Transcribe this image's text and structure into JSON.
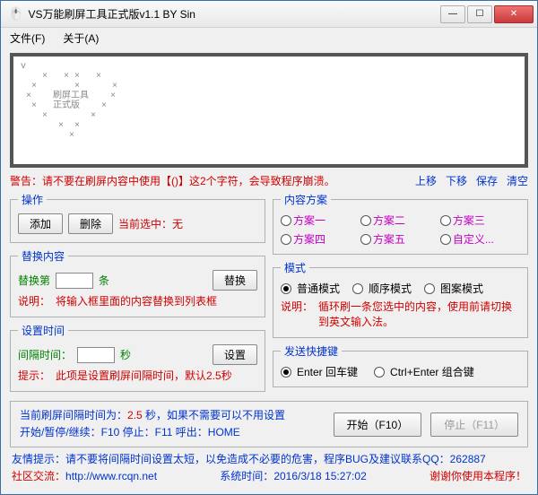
{
  "window": {
    "title": "VS万能刷屏工具正式版v1.1     BY Sin",
    "min_symbol": "—",
    "max_symbol": "☐",
    "close_symbol": "✕"
  },
  "menu": {
    "file": "文件(F)",
    "about": "关于(A)"
  },
  "ascii": "v\n    ×   × ×   ×\n  ×       ×      ×\n ×    刷屏工具    ×\n  ×   正式版    ×\n    ×        ×\n       ×  ×\n         ×",
  "warning": "警告：请不要在刷屏内容中使用【()】这2个字符，会导致程序崩溃。",
  "toolbar_links": {
    "up": "上移",
    "down": "下移",
    "save": "保存",
    "clear": "清空"
  },
  "ops": {
    "legend": "操作",
    "add": "添加",
    "del": "删除",
    "current_label": "当前选中：",
    "current_value": "无"
  },
  "replace": {
    "legend": "替换内容",
    "prefix": "替换第",
    "suffix": "条",
    "btn": "替换",
    "hint_label": "说明：",
    "hint": "将输入框里面的内容替换到列表框"
  },
  "time": {
    "legend": "设置时间",
    "label": "间隔时间：",
    "unit": "秒",
    "btn": "设置",
    "hint_label": "提示：",
    "hint": "此项是设置刷屏间隔时间，默认2.5秒"
  },
  "schemes": {
    "legend": "内容方案",
    "items": [
      "方案一",
      "方案二",
      "方案三",
      "方案四",
      "方案五",
      "自定义..."
    ],
    "selected": -1
  },
  "modes": {
    "legend": "模式",
    "items": [
      "普通模式",
      "顺序模式",
      "图案模式"
    ],
    "selected": 0,
    "hint_label": "说明：",
    "hint": "循环刷一条您选中的内容，使用前请切换到英文输入法。"
  },
  "hotkey": {
    "legend": "发送快捷键",
    "items": [
      "Enter 回车键",
      "Ctrl+Enter 组合键"
    ],
    "selected": 0
  },
  "info": {
    "line1_a": "当前刷屏间隔时间为：",
    "line1_b": "2.5",
    "line1_c": " 秒，如果不需要可以不用设置",
    "line2": "开始/暂停/继续：F10     停止：F11     呼出：HOME",
    "start": "开始（F10）",
    "stop": "停止（F11）"
  },
  "footer": {
    "tip": "友情提示：请不要将间隔时间设置太短，以免造成不必要的危害，程序BUG及建议联系QQ：262887",
    "community_label": "社区交流：",
    "community_url": "http://www.rcqn.net",
    "systime_label": "系统时间：",
    "systime": "2016/3/18 15:27:02",
    "thanks": "谢谢你使用本程序！"
  }
}
